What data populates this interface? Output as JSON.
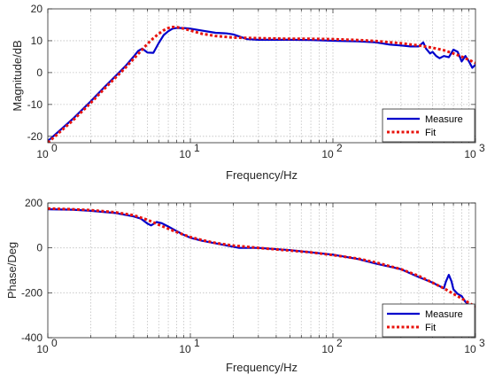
{
  "chart_data": [
    {
      "type": "line",
      "xscale": "log",
      "xlim": [
        1,
        1000
      ],
      "ylim": [
        -22,
        20
      ],
      "grid": true,
      "xticks": [
        1,
        10,
        100,
        1000
      ],
      "xtick_labels": [
        {
          "base": "10",
          "exp": "0"
        },
        {
          "base": "10",
          "exp": "1"
        },
        {
          "base": "10",
          "exp": "2"
        },
        {
          "base": "10",
          "exp": "3"
        }
      ],
      "yticks": [
        -20,
        -10,
        0,
        10,
        20
      ],
      "ytick_labels": [
        "-20",
        "-10",
        "0",
        "10",
        "20"
      ],
      "xlabel": "Frequency/Hz",
      "ylabel": "Magnitude/dB",
      "legend": {
        "placement": "bottom-right",
        "entries": [
          "Measure",
          "Fit"
        ]
      },
      "series": [
        {
          "name": "Measure",
          "color": "#0000cc",
          "style": "solid",
          "x": [
            1,
            1.5,
            2,
            2.5,
            3,
            3.5,
            4,
            4.3,
            4.6,
            5,
            5.5,
            6,
            6.5,
            7,
            7.5,
            8,
            9,
            10,
            12,
            15,
            18,
            20,
            25,
            30,
            40,
            50,
            70,
            100,
            150,
            200,
            250,
            300,
            350,
            400,
            430,
            450,
            480,
            500,
            530,
            560,
            600,
            650,
            700,
            750,
            800,
            850,
            900,
            950,
            1000
          ],
          "y": [
            -21.5,
            -14.5,
            -9,
            -4.5,
            -1,
            2,
            5,
            6.8,
            7.5,
            6.3,
            6.2,
            9.3,
            11.8,
            13,
            13.8,
            14,
            14,
            13.8,
            13.2,
            12.5,
            12.3,
            12,
            10.5,
            10.3,
            10.3,
            10.3,
            10.2,
            10,
            9.8,
            9.5,
            8.8,
            8.5,
            8.2,
            8.2,
            9.5,
            7.5,
            6.0,
            6.5,
            5.2,
            4.5,
            5.2,
            4.8,
            7.2,
            6.5,
            3.5,
            5.2,
            3.5,
            1.5,
            2.5
          ]
        },
        {
          "name": "Fit",
          "color": "#e8140e",
          "style": "dotted",
          "x": [
            1,
            1.5,
            2,
            2.5,
            3,
            3.5,
            4,
            4.5,
            5,
            5.5,
            6,
            6.5,
            7,
            7.5,
            8,
            9,
            10,
            12,
            15,
            20,
            30,
            50,
            70,
            100,
            150,
            200,
            300,
            400,
            500,
            600,
            700,
            800,
            900,
            1000
          ],
          "y": [
            -22,
            -15,
            -9.5,
            -5,
            -1.5,
            1.5,
            4.3,
            6.8,
            9.0,
            10.8,
            12.2,
            13.3,
            14,
            14.3,
            14.3,
            13.8,
            13.2,
            12.2,
            11.5,
            11,
            10.8,
            10.6,
            10.6,
            10.5,
            10.2,
            9.9,
            9.2,
            8.5,
            7.8,
            7.0,
            6.0,
            5.0,
            4.0,
            3.0
          ]
        }
      ]
    },
    {
      "type": "line",
      "xscale": "log",
      "xlim": [
        1,
        1000
      ],
      "ylim": [
        -400,
        200
      ],
      "grid": true,
      "xticks": [
        1,
        10,
        100,
        1000
      ],
      "xtick_labels": [
        {
          "base": "10",
          "exp": "0"
        },
        {
          "base": "10",
          "exp": "1"
        },
        {
          "base": "10",
          "exp": "2"
        },
        {
          "base": "10",
          "exp": "3"
        }
      ],
      "yticks": [
        -400,
        -200,
        0,
        200
      ],
      "ytick_labels": [
        "-400",
        "-200",
        "0",
        "200"
      ],
      "xlabel": "Frequency/Hz",
      "ylabel": "Phase/Deg",
      "legend": {
        "placement": "bottom-right",
        "entries": [
          "Measure",
          "Fit"
        ]
      },
      "series": [
        {
          "name": "Measure",
          "color": "#0000cc",
          "style": "solid",
          "x": [
            1,
            1.5,
            2,
            3,
            4,
            4.5,
            5,
            5.3,
            5.8,
            6.3,
            7,
            8,
            9,
            10,
            12,
            15,
            20,
            22,
            30,
            50,
            100,
            150,
            200,
            300,
            400,
            500,
            600,
            620,
            650,
            680,
            700,
            750,
            800,
            850,
            900,
            950
          ],
          "y": [
            172,
            170,
            165,
            155,
            140,
            130,
            108,
            100,
            115,
            110,
            95,
            75,
            58,
            45,
            32,
            20,
            5,
            0,
            0,
            -10,
            -30,
            -50,
            -70,
            -95,
            -130,
            -155,
            -180,
            -150,
            -120,
            -150,
            -185,
            -205,
            -215,
            -240,
            -255,
            -265
          ]
        },
        {
          "name": "Fit",
          "color": "#e8140e",
          "style": "dotted",
          "x": [
            1,
            1.5,
            2,
            3,
            4,
            5,
            6,
            7,
            8,
            10,
            12,
            15,
            20,
            30,
            50,
            70,
            100,
            150,
            200,
            300,
            400,
            500,
            600,
            700,
            800,
            900,
            1000
          ],
          "y": [
            175,
            172,
            168,
            158,
            145,
            125,
            103,
            85,
            70,
            48,
            35,
            22,
            10,
            0,
            -12,
            -20,
            -32,
            -48,
            -65,
            -95,
            -125,
            -155,
            -180,
            -205,
            -225,
            -245,
            -262
          ]
        }
      ]
    }
  ]
}
